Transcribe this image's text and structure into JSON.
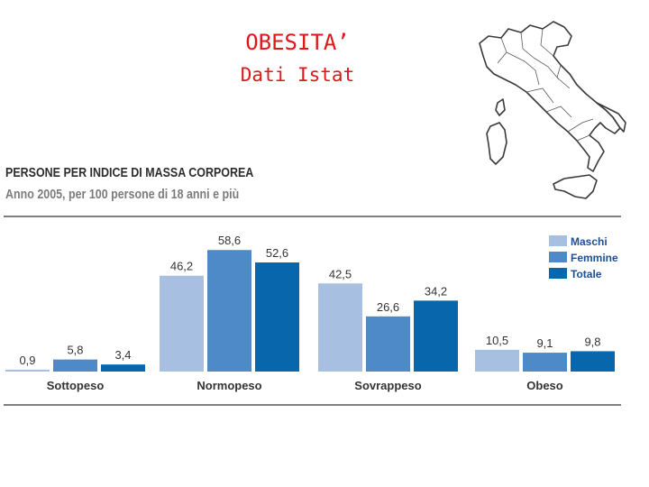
{
  "slide": {
    "title": "OBESITA’",
    "subtitle": "Dati Istat"
  },
  "colors": {
    "title_red": "#e0161b",
    "maschi": "#a7bfe0",
    "femmine": "#4f8ac8",
    "totale": "#0866ad"
  },
  "map": {
    "icon": "italy-regions-map-icon"
  },
  "chart_data": {
    "type": "bar",
    "title": "PERSONE PER INDICE DI MASSA CORPOREA",
    "subtitle": "Anno 2005, per 100 persone di 18 anni e più",
    "categories": [
      "Sottopeso",
      "Normopeso",
      "Sovrappeso",
      "Obeso"
    ],
    "series": [
      {
        "name": "Maschi",
        "values": [
          0.9,
          46.2,
          42.5,
          10.5
        ],
        "labels": [
          "0,9",
          "46,2",
          "42,5",
          "10,5"
        ]
      },
      {
        "name": "Femmine",
        "values": [
          5.8,
          58.6,
          26.6,
          9.1
        ],
        "labels": [
          "5,8",
          "58,6",
          "26,6",
          "9,1"
        ]
      },
      {
        "name": "Totale",
        "values": [
          3.4,
          52.6,
          34.2,
          9.8
        ],
        "labels": [
          "3,4",
          "52,6",
          "34,2",
          "9,8"
        ]
      }
    ],
    "ylim": [
      0,
      60
    ],
    "grid": false,
    "legend": "top-right"
  }
}
